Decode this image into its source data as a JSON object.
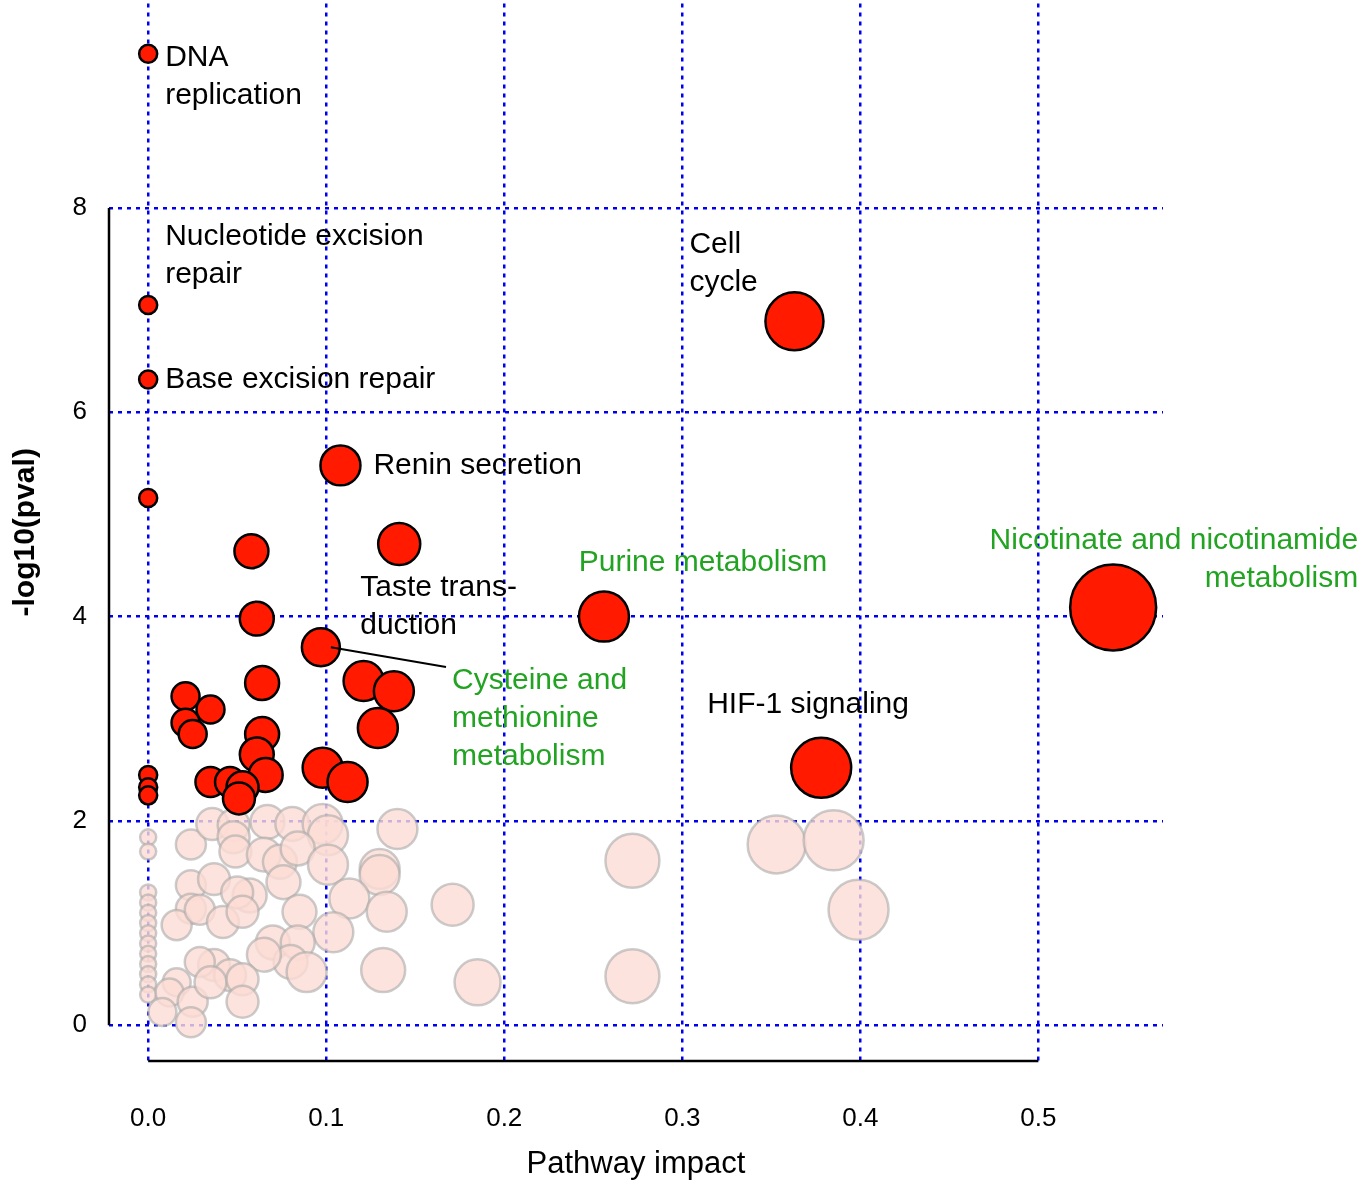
{
  "chart_data": {
    "type": "bubble",
    "xlabel": "Pathway impact",
    "ylabel": "-log10(pval)",
    "xlim": [
      -0.022,
      0.57
    ],
    "ylim": [
      -0.35,
      10
    ],
    "xticks": [
      {
        "value": 0,
        "label": "0.0"
      },
      0.1,
      0.2,
      0.3,
      0.4,
      0.5
    ],
    "yticks": [
      0,
      2,
      4,
      6,
      8
    ],
    "grid": true,
    "series": [
      {
        "color": "#ff1a00",
        "x": [
          0,
          0,
          0,
          0,
          0.363,
          0.108,
          0.141,
          0.058,
          0.061,
          0.256,
          0.542,
          0.097,
          0.064,
          0.121,
          0.138,
          0.129,
          0.378,
          0.021,
          0.035,
          0.021,
          0.025,
          0.064,
          0.061,
          0.066,
          0.098,
          0.112,
          0.035,
          0.046,
          0.053,
          0.051,
          0,
          0,
          0
        ],
        "values": [
          9.51,
          7.05,
          6.32,
          5.16,
          6.89,
          5.48,
          4.71,
          4.64,
          3.98,
          4.0,
          4.09,
          3.7,
          3.35,
          3.37,
          3.27,
          2.91,
          2.52,
          3.22,
          3.09,
          2.96,
          2.85,
          2.85,
          2.65,
          2.45,
          2.52,
          2.38,
          2.38,
          2.38,
          2.33,
          2.22,
          2.45,
          2.33,
          2.25
        ],
        "sizes": [
          0.044,
          0.044,
          0.044,
          0.044,
          0.455,
          0.216,
          0.239,
          0.156,
          0.156,
          0.338,
          1,
          0.195,
          0.156,
          0.216,
          0.216,
          0.216,
          0.487,
          0.106,
          0.106,
          0.106,
          0.106,
          0.156,
          0.156,
          0.156,
          0.216,
          0.216,
          0.122,
          0.122,
          0.138,
          0.138,
          0.044,
          0.044,
          0.044
        ]
      },
      {
        "color": "#fcdcd4",
        "x": [
          0,
          0,
          0,
          0,
          0,
          0,
          0,
          0,
          0,
          0,
          0,
          0,
          0,
          0.024,
          0.036,
          0.048,
          0.048,
          0.067,
          0.081,
          0.098,
          0.101,
          0.14,
          0.049,
          0.065,
          0.074,
          0.084,
          0.101,
          0.13,
          0.13,
          0.024,
          0.037,
          0.057,
          0.076,
          0.05,
          0.113,
          0.134,
          0.171,
          0.024,
          0.016,
          0.029,
          0.042,
          0.053,
          0.085,
          0.104,
          0.07,
          0.084,
          0.08,
          0.065,
          0.089,
          0.037,
          0.046,
          0.029,
          0.016,
          0.012,
          0.025,
          0.024,
          0.008,
          0.035,
          0.053,
          0.053,
          0.132,
          0.185,
          0.272,
          0.272,
          0.353,
          0.385,
          0.399
        ],
        "values": [
          1.84,
          1.7,
          1.3,
          1.2,
          1.1,
          1.0,
          0.9,
          0.8,
          0.7,
          0.6,
          0.5,
          0.4,
          0.3,
          1.77,
          1.97,
          1.96,
          1.84,
          1.99,
          1.97,
          1.97,
          1.86,
          1.92,
          1.7,
          1.67,
          1.6,
          1.73,
          1.57,
          1.53,
          1.47,
          1.37,
          1.43,
          1.27,
          1.4,
          1.3,
          1.24,
          1.11,
          1.18,
          1.14,
          0.98,
          1.13,
          1.01,
          1.11,
          1.11,
          0.91,
          0.81,
          0.81,
          0.62,
          0.69,
          0.52,
          0.59,
          0.49,
          0.62,
          0.42,
          0.32,
          0.23,
          0.03,
          0.13,
          0.42,
          0.45,
          0.23,
          0.54,
          0.42,
          1.61,
          0.48,
          1.77,
          1.81,
          1.13
        ],
        "sizes": [
          0.035,
          0.035,
          0.035,
          0.035,
          0.035,
          0.035,
          0.035,
          0.035,
          0.035,
          0.035,
          0.035,
          0.035,
          0.035,
          0.122,
          0.138,
          0.138,
          0.138,
          0.156,
          0.156,
          0.216,
          0.216,
          0.216,
          0.138,
          0.156,
          0.156,
          0.156,
          0.216,
          0.216,
          0.216,
          0.122,
          0.138,
          0.156,
          0.156,
          0.138,
          0.216,
          0.216,
          0.239,
          0.122,
          0.122,
          0.122,
          0.138,
          0.138,
          0.156,
          0.216,
          0.156,
          0.156,
          0.156,
          0.156,
          0.216,
          0.138,
          0.138,
          0.122,
          0.106,
          0.106,
          0.122,
          0.122,
          0.106,
          0.138,
          0.138,
          0.138,
          0.262,
          0.286,
          0.394,
          0.394,
          0.455,
          0.487,
          0.487
        ]
      }
    ],
    "annotations": [
      {
        "text": "DNA\nreplication",
        "x": 0,
        "y": 9.51
      },
      {
        "text": "Nucleotide excision\nrepair",
        "x": 0,
        "y": 7.05
      },
      {
        "text": "Base excision repair",
        "x": 0,
        "y": 6.32
      },
      {
        "text": "Cell\ncycle",
        "x": 0.363,
        "y": 6.89
      },
      {
        "text": "Renin secretion",
        "x": 0.108,
        "y": 5.48
      },
      {
        "text": "Taste trans-\nduction",
        "x": 0.141,
        "y": 4.71
      },
      "Cysteine and\nmethionine\nmetabolism",
      {
        "text": "Purine metabolism",
        "x": 0.256,
        "y": 4.0
      },
      {
        "text": "Nicotinate and nicotinamide\nmetabolism",
        "x": 0.542,
        "y": 4.09
      },
      {
        "text": "HIF-1 signaling",
        "x": 0.378,
        "y": 2.52
      }
    ]
  }
}
